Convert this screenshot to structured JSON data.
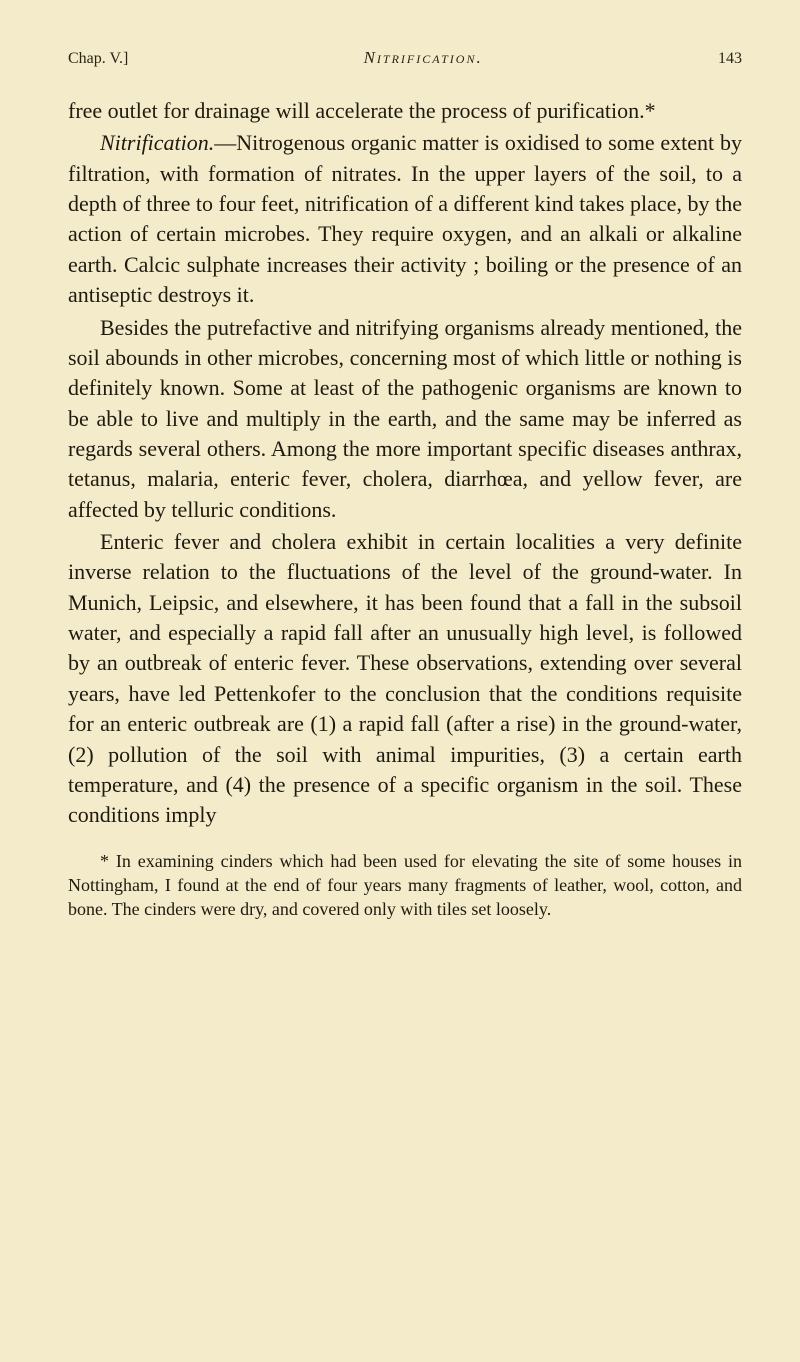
{
  "header": {
    "chapter": "Chap. V.]",
    "running_title": "Nitrification.",
    "page_number": "143"
  },
  "paragraphs": {
    "p1": "free outlet for drainage will accelerate the process of purification.*",
    "p2_lead_italic": "Nitrification.",
    "p2_rest": "—Nitrogenous organic matter is oxidised to some extent by filtration, with formation of nitrates. In the upper layers of the soil, to a depth of three to four feet, nitrification of a different kind takes place, by the action of certain microbes. They require oxygen, and an alkali or alkaline earth. Calcic sulphate increases their activity ; boiling or the presence of an antiseptic destroys it.",
    "p3": "Besides the putrefactive and nitrifying organisms already mentioned, the soil abounds in other microbes, concerning most of which little or nothing is definitely known. Some at least of the pathogenic organisms are known to be able to live and multiply in the earth, and the same may be inferred as regards several others. Among the more important specific diseases anthrax, tetanus, malaria, enteric fever, cholera, diarrhœa, and yellow fever, are affected by telluric conditions.",
    "p4": "Enteric fever and cholera exhibit in certain localities a very definite inverse relation to the fluctuations of the level of the ground-water. In Munich, Leipsic, and elsewhere, it has been found that a fall in the subsoil water, and especially a rapid fall after an unusually high level, is followed by an outbreak of enteric fever. These observations, extending over several years, have led Pettenkofer to the conclusion that the conditions requisite for an enteric outbreak are (1) a rapid fall (after a rise) in the ground-water, (2) pollution of the soil with animal impurities, (3) a certain earth temperature, and (4) the presence of a specific organism in the soil. These conditions imply"
  },
  "footnote": "* In examining cinders which had been used for elevating the site of some houses in Nottingham, I found at the end of four years many fragments of leather, wool, cotton, and bone. The cinders were dry, and covered only with tiles set loosely."
}
